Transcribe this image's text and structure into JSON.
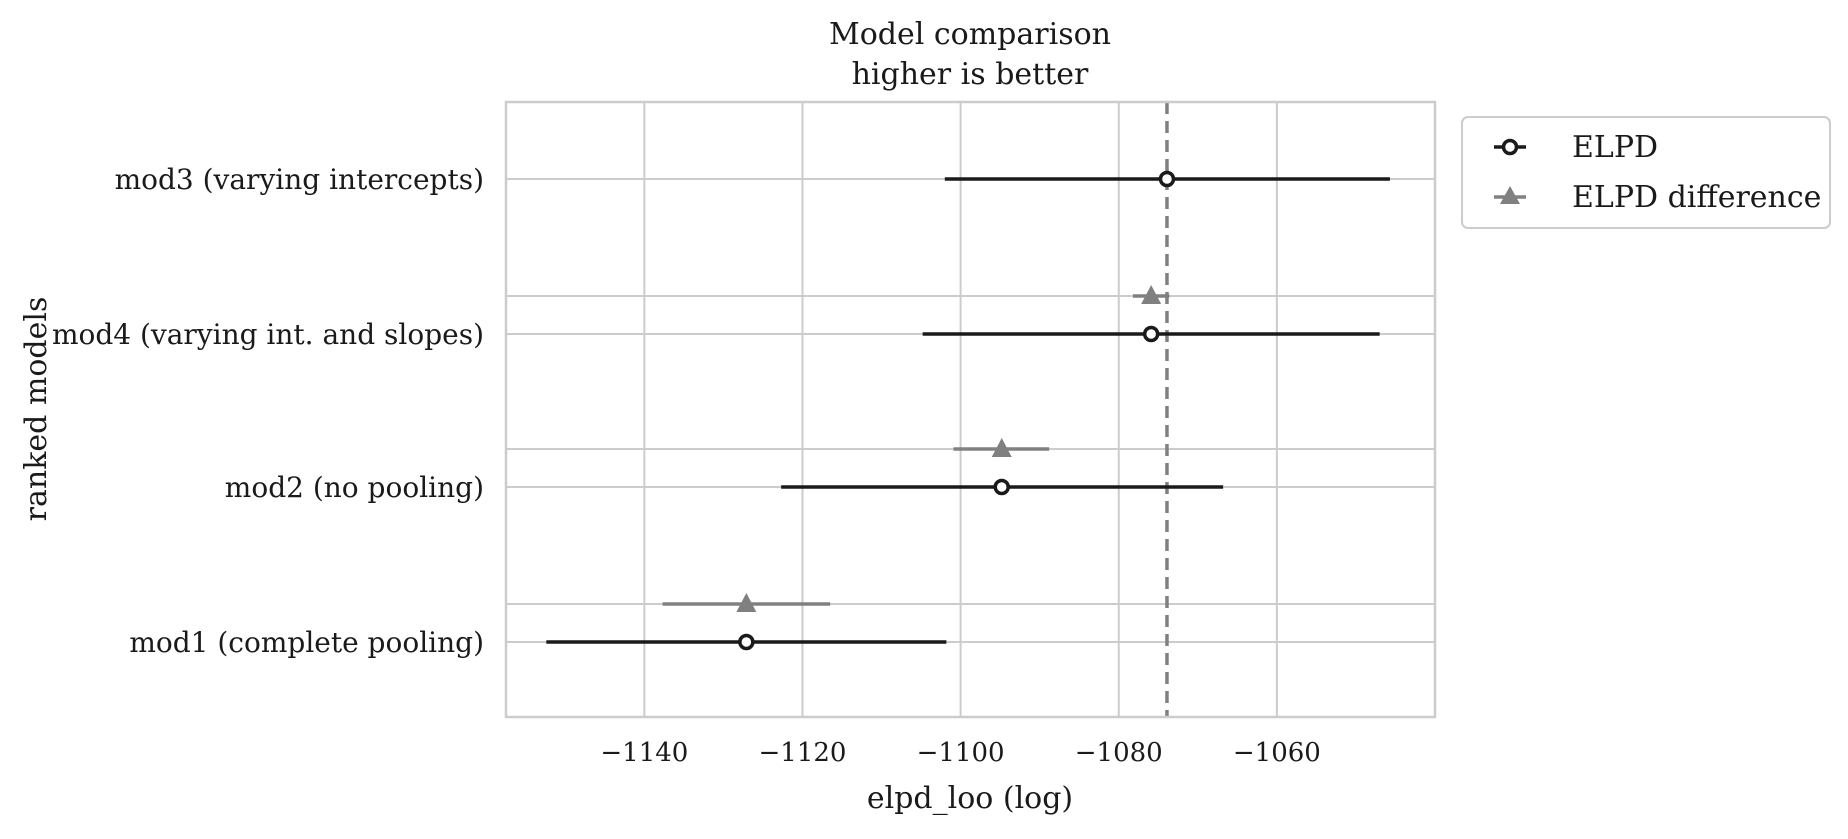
{
  "chart_data": {
    "type": "scatter",
    "title": [
      "Model comparison",
      "higher is better"
    ],
    "xlabel": "elpd_loo (log)",
    "ylabel": "ranked models",
    "xlim": [
      -1157.5,
      -1040.0
    ],
    "xticks": [
      -1140,
      -1120,
      -1100,
      -1080,
      -1060
    ],
    "xtick_labels": [
      "−1140",
      "−1120",
      "−1100",
      "−1080",
      "−1060"
    ],
    "grid": true,
    "legend_position": "outside right, top",
    "reference_line": {
      "x": -1073.9,
      "style": "dashed",
      "color": "#808080"
    },
    "models": [
      "mod3 (varying intercepts)",
      "mod4 (varying int. and slopes)",
      "mod2 (no pooling)",
      "mod1 (complete pooling)"
    ],
    "series": [
      {
        "name": "ELPD",
        "marker": "open-circle",
        "color": "#1a1a1a",
        "points": [
          {
            "model": "mod3 (varying intercepts)",
            "value": -1073.9,
            "low": -1102.0,
            "high": -1045.7
          },
          {
            "model": "mod4 (varying int. and slopes)",
            "value": -1075.9,
            "low": -1104.8,
            "high": -1047.0
          },
          {
            "model": "mod2 (no pooling)",
            "value": -1094.8,
            "low": -1122.7,
            "high": -1066.8
          },
          {
            "model": "mod1 (complete pooling)",
            "value": -1127.1,
            "low": -1152.4,
            "high": -1101.8
          }
        ]
      },
      {
        "name": "ELPD difference",
        "marker": "triangle",
        "color": "#808080",
        "points": [
          {
            "model": "mod4 (varying int. and slopes)",
            "value": -1075.9,
            "low": -1078.2,
            "high": -1073.6
          },
          {
            "model": "mod2 (no pooling)",
            "value": -1094.8,
            "low": -1100.9,
            "high": -1088.8
          },
          {
            "model": "mod1 (complete pooling)",
            "value": -1127.1,
            "low": -1137.7,
            "high": -1116.5
          }
        ]
      }
    ]
  }
}
